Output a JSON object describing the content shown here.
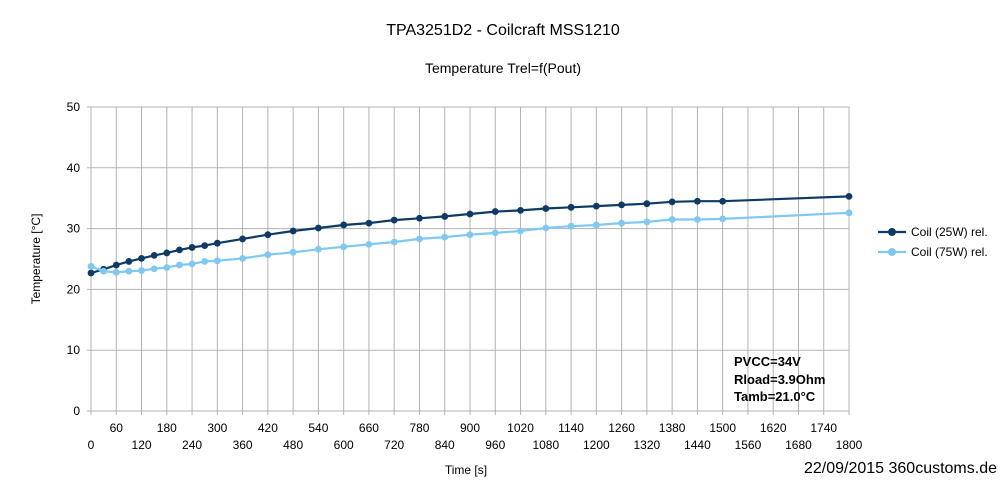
{
  "chart_data": {
    "type": "line",
    "title": "TPA3251D2 - Coilcraft MSS1210",
    "subtitle": "Temperature Trel=f(Pout)",
    "xlabel": "Time [s]",
    "ylabel": "Temperature [°C]",
    "xlim": [
      0,
      1800
    ],
    "ylim": [
      0,
      50
    ],
    "x_ticks": [
      0,
      60,
      120,
      180,
      240,
      300,
      360,
      420,
      480,
      540,
      600,
      660,
      720,
      780,
      840,
      900,
      960,
      1020,
      1080,
      1140,
      1200,
      1260,
      1320,
      1380,
      1440,
      1500,
      1560,
      1620,
      1680,
      1740,
      1800
    ],
    "y_ticks": [
      0,
      10,
      20,
      30,
      40,
      50
    ],
    "grid": true,
    "legend_position": "right",
    "series": [
      {
        "name": "Coil (25W) rel.",
        "color": "#0d3b66",
        "points": [
          [
            0,
            22.7
          ],
          [
            30,
            23.3
          ],
          [
            60,
            24.0
          ],
          [
            90,
            24.6
          ],
          [
            120,
            25.1
          ],
          [
            150,
            25.6
          ],
          [
            180,
            26.0
          ],
          [
            210,
            26.5
          ],
          [
            240,
            26.9
          ],
          [
            270,
            27.2
          ],
          [
            300,
            27.6
          ],
          [
            360,
            28.3
          ],
          [
            420,
            29.0
          ],
          [
            480,
            29.6
          ],
          [
            540,
            30.1
          ],
          [
            600,
            30.6
          ],
          [
            660,
            30.9
          ],
          [
            720,
            31.4
          ],
          [
            780,
            31.7
          ],
          [
            840,
            32.0
          ],
          [
            900,
            32.4
          ],
          [
            960,
            32.8
          ],
          [
            1020,
            33.0
          ],
          [
            1080,
            33.3
          ],
          [
            1140,
            33.5
          ],
          [
            1200,
            33.7
          ],
          [
            1260,
            33.9
          ],
          [
            1320,
            34.1
          ],
          [
            1380,
            34.4
          ],
          [
            1440,
            34.5
          ],
          [
            1500,
            34.5
          ],
          [
            1800,
            35.3
          ]
        ]
      },
      {
        "name": "Coil (75W) rel.",
        "color": "#7ec8f2",
        "points": [
          [
            0,
            23.8
          ],
          [
            30,
            23.0
          ],
          [
            60,
            22.8
          ],
          [
            90,
            23.0
          ],
          [
            120,
            23.1
          ],
          [
            150,
            23.4
          ],
          [
            180,
            23.6
          ],
          [
            210,
            24.0
          ],
          [
            240,
            24.2
          ],
          [
            270,
            24.6
          ],
          [
            300,
            24.7
          ],
          [
            360,
            25.1
          ],
          [
            420,
            25.7
          ],
          [
            480,
            26.1
          ],
          [
            540,
            26.6
          ],
          [
            600,
            27.0
          ],
          [
            660,
            27.4
          ],
          [
            720,
            27.8
          ],
          [
            780,
            28.3
          ],
          [
            840,
            28.6
          ],
          [
            900,
            29.0
          ],
          [
            960,
            29.3
          ],
          [
            1020,
            29.6
          ],
          [
            1080,
            30.1
          ],
          [
            1140,
            30.4
          ],
          [
            1200,
            30.6
          ],
          [
            1260,
            30.9
          ],
          [
            1320,
            31.1
          ],
          [
            1380,
            31.5
          ],
          [
            1440,
            31.5
          ],
          [
            1500,
            31.6
          ],
          [
            1800,
            32.6
          ]
        ]
      }
    ],
    "annotations": [
      "PVCC=34V",
      "Rload=3.9Ohm",
      "Tamb=21.0°C"
    ],
    "footer": "22/09/2015 360customs.de"
  }
}
